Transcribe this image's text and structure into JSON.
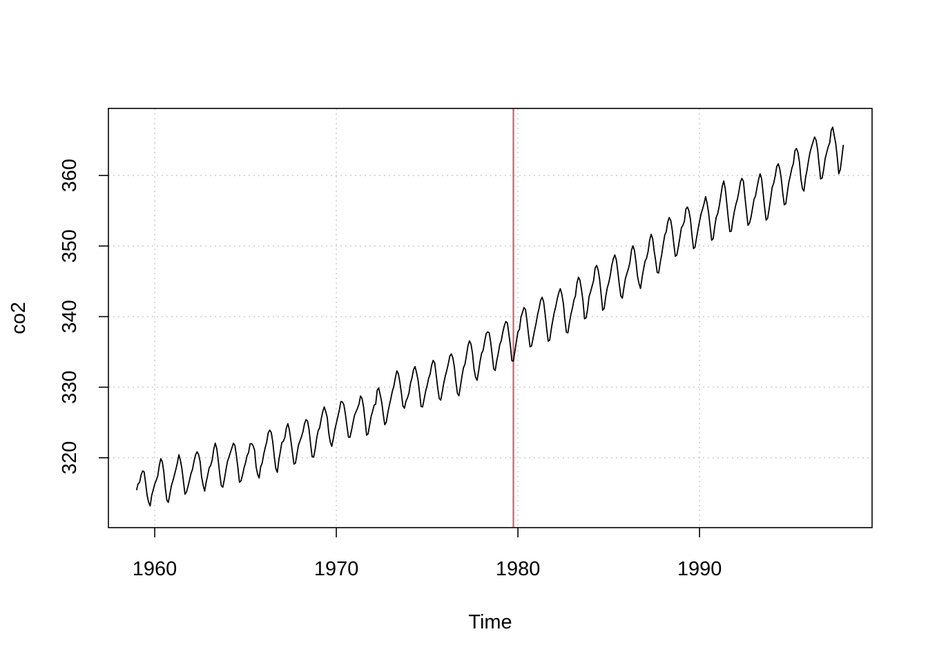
{
  "chart_data": {
    "type": "line",
    "title": "",
    "xlabel": "Time",
    "ylabel": "co2",
    "xlim": [
      1957.45,
      1999.5
    ],
    "ylim": [
      310.1,
      369.5
    ],
    "x_ticks": [
      1960,
      1970,
      1980,
      1990
    ],
    "y_ticks": [
      320,
      330,
      340,
      350,
      360
    ],
    "grid": true,
    "grid_style": "dotted",
    "colors": {
      "series": "#000000",
      "vline": "#DF536B",
      "grid": "#cccccc"
    },
    "vline": {
      "x": 1979.75
    },
    "series": [
      {
        "start": 1959.0,
        "frequency": 12,
        "values": [
          315.42,
          316.31,
          316.5,
          317.56,
          318.13,
          318.0,
          316.39,
          314.65,
          313.68,
          313.18,
          314.66,
          315.43,
          316.27,
          316.81,
          317.42,
          318.87,
          319.87,
          319.43,
          318.01,
          315.74,
          314.0,
          313.68,
          314.84,
          316.03,
          316.73,
          317.54,
          318.38,
          319.31,
          320.42,
          319.61,
          318.42,
          316.63,
          314.83,
          315.16,
          315.94,
          316.85,
          317.78,
          318.4,
          319.53,
          320.42,
          320.85,
          320.45,
          319.45,
          317.25,
          316.11,
          315.27,
          316.53,
          317.53,
          318.58,
          318.92,
          319.7,
          321.22,
          322.08,
          321.31,
          319.58,
          317.61,
          316.05,
          315.83,
          316.91,
          318.2,
          319.41,
          320.07,
          320.74,
          321.4,
          322.06,
          321.73,
          320.27,
          318.54,
          316.54,
          316.71,
          317.53,
          318.55,
          319.27,
          320.28,
          320.73,
          321.97,
          322.0,
          321.71,
          321.05,
          318.71,
          317.66,
          317.14,
          318.7,
          319.25,
          320.46,
          321.43,
          322.23,
          323.54,
          323.91,
          323.59,
          322.24,
          320.2,
          318.48,
          317.94,
          319.63,
          320.87,
          322.17,
          322.34,
          322.88,
          324.25,
          324.83,
          323.93,
          322.38,
          320.76,
          319.1,
          319.24,
          320.56,
          321.8,
          322.4,
          322.99,
          323.73,
          324.86,
          325.4,
          325.2,
          323.98,
          321.95,
          320.18,
          320.09,
          321.16,
          322.74,
          323.83,
          324.26,
          325.47,
          326.5,
          327.21,
          326.54,
          325.72,
          323.5,
          322.22,
          321.62,
          322.69,
          323.95,
          324.89,
          325.82,
          326.77,
          327.97,
          327.91,
          327.5,
          326.18,
          324.53,
          322.93,
          322.9,
          323.85,
          324.96,
          326.01,
          326.51,
          327.01,
          327.62,
          328.76,
          328.4,
          327.2,
          325.27,
          323.2,
          323.4,
          324.63,
          325.85,
          326.6,
          327.47,
          327.58,
          329.56,
          329.9,
          328.92,
          327.88,
          326.16,
          324.68,
          325.04,
          326.34,
          327.39,
          328.37,
          329.4,
          330.14,
          331.33,
          332.31,
          331.9,
          330.7,
          329.15,
          327.35,
          327.02,
          327.99,
          328.48,
          329.18,
          330.55,
          331.32,
          332.48,
          332.92,
          332.08,
          331.01,
          329.23,
          327.27,
          327.21,
          328.29,
          329.41,
          330.23,
          331.25,
          331.87,
          333.14,
          333.8,
          333.43,
          331.73,
          329.9,
          328.4,
          328.17,
          329.32,
          330.59,
          331.58,
          332.39,
          333.33,
          334.41,
          334.71,
          334.17,
          332.89,
          330.77,
          329.14,
          328.78,
          330.14,
          331.52,
          332.75,
          333.24,
          334.53,
          335.9,
          336.57,
          336.1,
          334.76,
          332.59,
          331.42,
          330.98,
          332.24,
          333.68,
          334.8,
          335.22,
          336.47,
          337.59,
          337.84,
          337.72,
          336.37,
          334.51,
          332.6,
          332.38,
          333.75,
          334.78,
          336.05,
          336.59,
          337.79,
          338.71,
          339.3,
          339.12,
          337.56,
          335.92,
          333.75,
          333.7,
          335.12,
          336.56,
          337.84,
          338.19,
          339.91,
          340.6,
          341.29,
          341.0,
          339.39,
          337.43,
          335.72,
          335.84,
          336.93,
          338.04,
          339.06,
          340.3,
          341.21,
          342.33,
          342.74,
          342.08,
          340.32,
          338.26,
          336.52,
          336.68,
          338.19,
          339.44,
          340.57,
          341.44,
          342.53,
          343.39,
          343.96,
          343.18,
          341.88,
          339.65,
          337.81,
          337.69,
          339.09,
          340.32,
          341.2,
          342.35,
          342.93,
          344.77,
          345.58,
          345.14,
          343.81,
          342.21,
          339.69,
          339.82,
          340.98,
          342.82,
          343.52,
          344.33,
          345.11,
          346.88,
          347.25,
          346.62,
          345.22,
          343.11,
          340.9,
          341.18,
          342.8,
          344.04,
          344.79,
          345.82,
          347.25,
          348.17,
          348.74,
          348.07,
          346.38,
          344.51,
          342.92,
          342.62,
          344.06,
          345.38,
          346.11,
          346.78,
          347.68,
          349.37,
          350.03,
          349.37,
          347.76,
          345.73,
          344.68,
          343.99,
          345.48,
          346.72,
          347.84,
          348.29,
          349.23,
          350.8,
          351.66,
          351.07,
          349.33,
          347.92,
          346.27,
          346.18,
          347.64,
          348.78,
          350.25,
          351.54,
          352.05,
          353.41,
          354.04,
          353.62,
          352.22,
          350.27,
          348.55,
          348.72,
          349.91,
          351.18,
          352.6,
          352.92,
          353.53,
          355.26,
          355.52,
          354.97,
          353.75,
          351.52,
          349.64,
          349.83,
          351.14,
          352.37,
          353.5,
          354.55,
          355.23,
          356.04,
          357.0,
          356.07,
          354.67,
          352.76,
          350.82,
          351.04,
          352.69,
          354.07,
          354.59,
          355.63,
          357.03,
          358.48,
          359.22,
          358.12,
          356.06,
          353.92,
          352.05,
          352.11,
          353.64,
          354.89,
          355.88,
          356.63,
          357.72,
          359.07,
          359.58,
          359.17,
          356.94,
          354.92,
          352.94,
          353.23,
          354.09,
          355.33,
          356.63,
          357.1,
          358.32,
          359.41,
          360.23,
          359.55,
          357.53,
          355.48,
          353.67,
          353.95,
          355.3,
          356.78,
          358.34,
          358.89,
          359.95,
          361.25,
          361.67,
          360.94,
          359.55,
          357.49,
          355.84,
          356.0,
          357.59,
          359.05,
          359.98,
          361.03,
          361.66,
          363.48,
          363.82,
          363.3,
          361.94,
          359.5,
          358.11,
          357.8,
          359.61,
          360.74,
          362.09,
          363.29,
          364.06,
          364.76,
          365.45,
          365.01,
          363.7,
          361.54,
          359.51,
          359.65,
          360.8,
          362.38,
          363.23,
          364.06,
          364.61,
          366.4,
          366.84,
          365.68,
          364.52,
          362.57,
          360.24,
          360.83,
          362.49,
          364.34
        ]
      }
    ]
  }
}
